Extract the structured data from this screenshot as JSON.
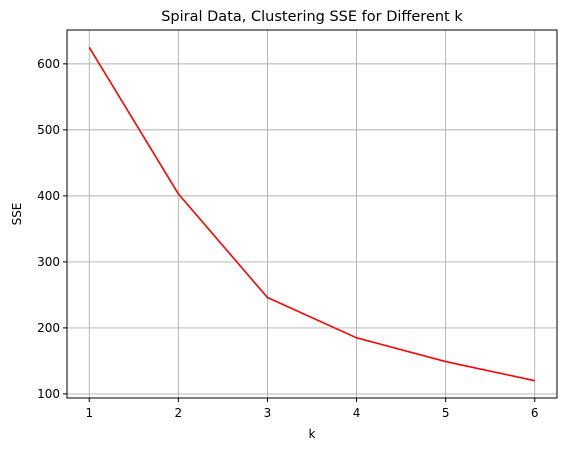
{
  "chart_data": {
    "type": "line",
    "title": "Spiral Data, Clustering SSE for Different k",
    "xlabel": "k",
    "ylabel": "SSE",
    "x": [
      1,
      2,
      3,
      4,
      5,
      6
    ],
    "series": [
      {
        "values": [
          625,
          403,
          246,
          185,
          149,
          120
        ],
        "color": "#ff0000"
      }
    ],
    "xticks": [
      1,
      2,
      3,
      4,
      5,
      6
    ],
    "yticks": [
      100,
      200,
      300,
      400,
      500,
      600
    ],
    "xlim": [
      0.75,
      6.25
    ],
    "ylim": [
      93.8,
      651.3
    ],
    "grid": true,
    "grid_color": "#b0b0b0"
  }
}
